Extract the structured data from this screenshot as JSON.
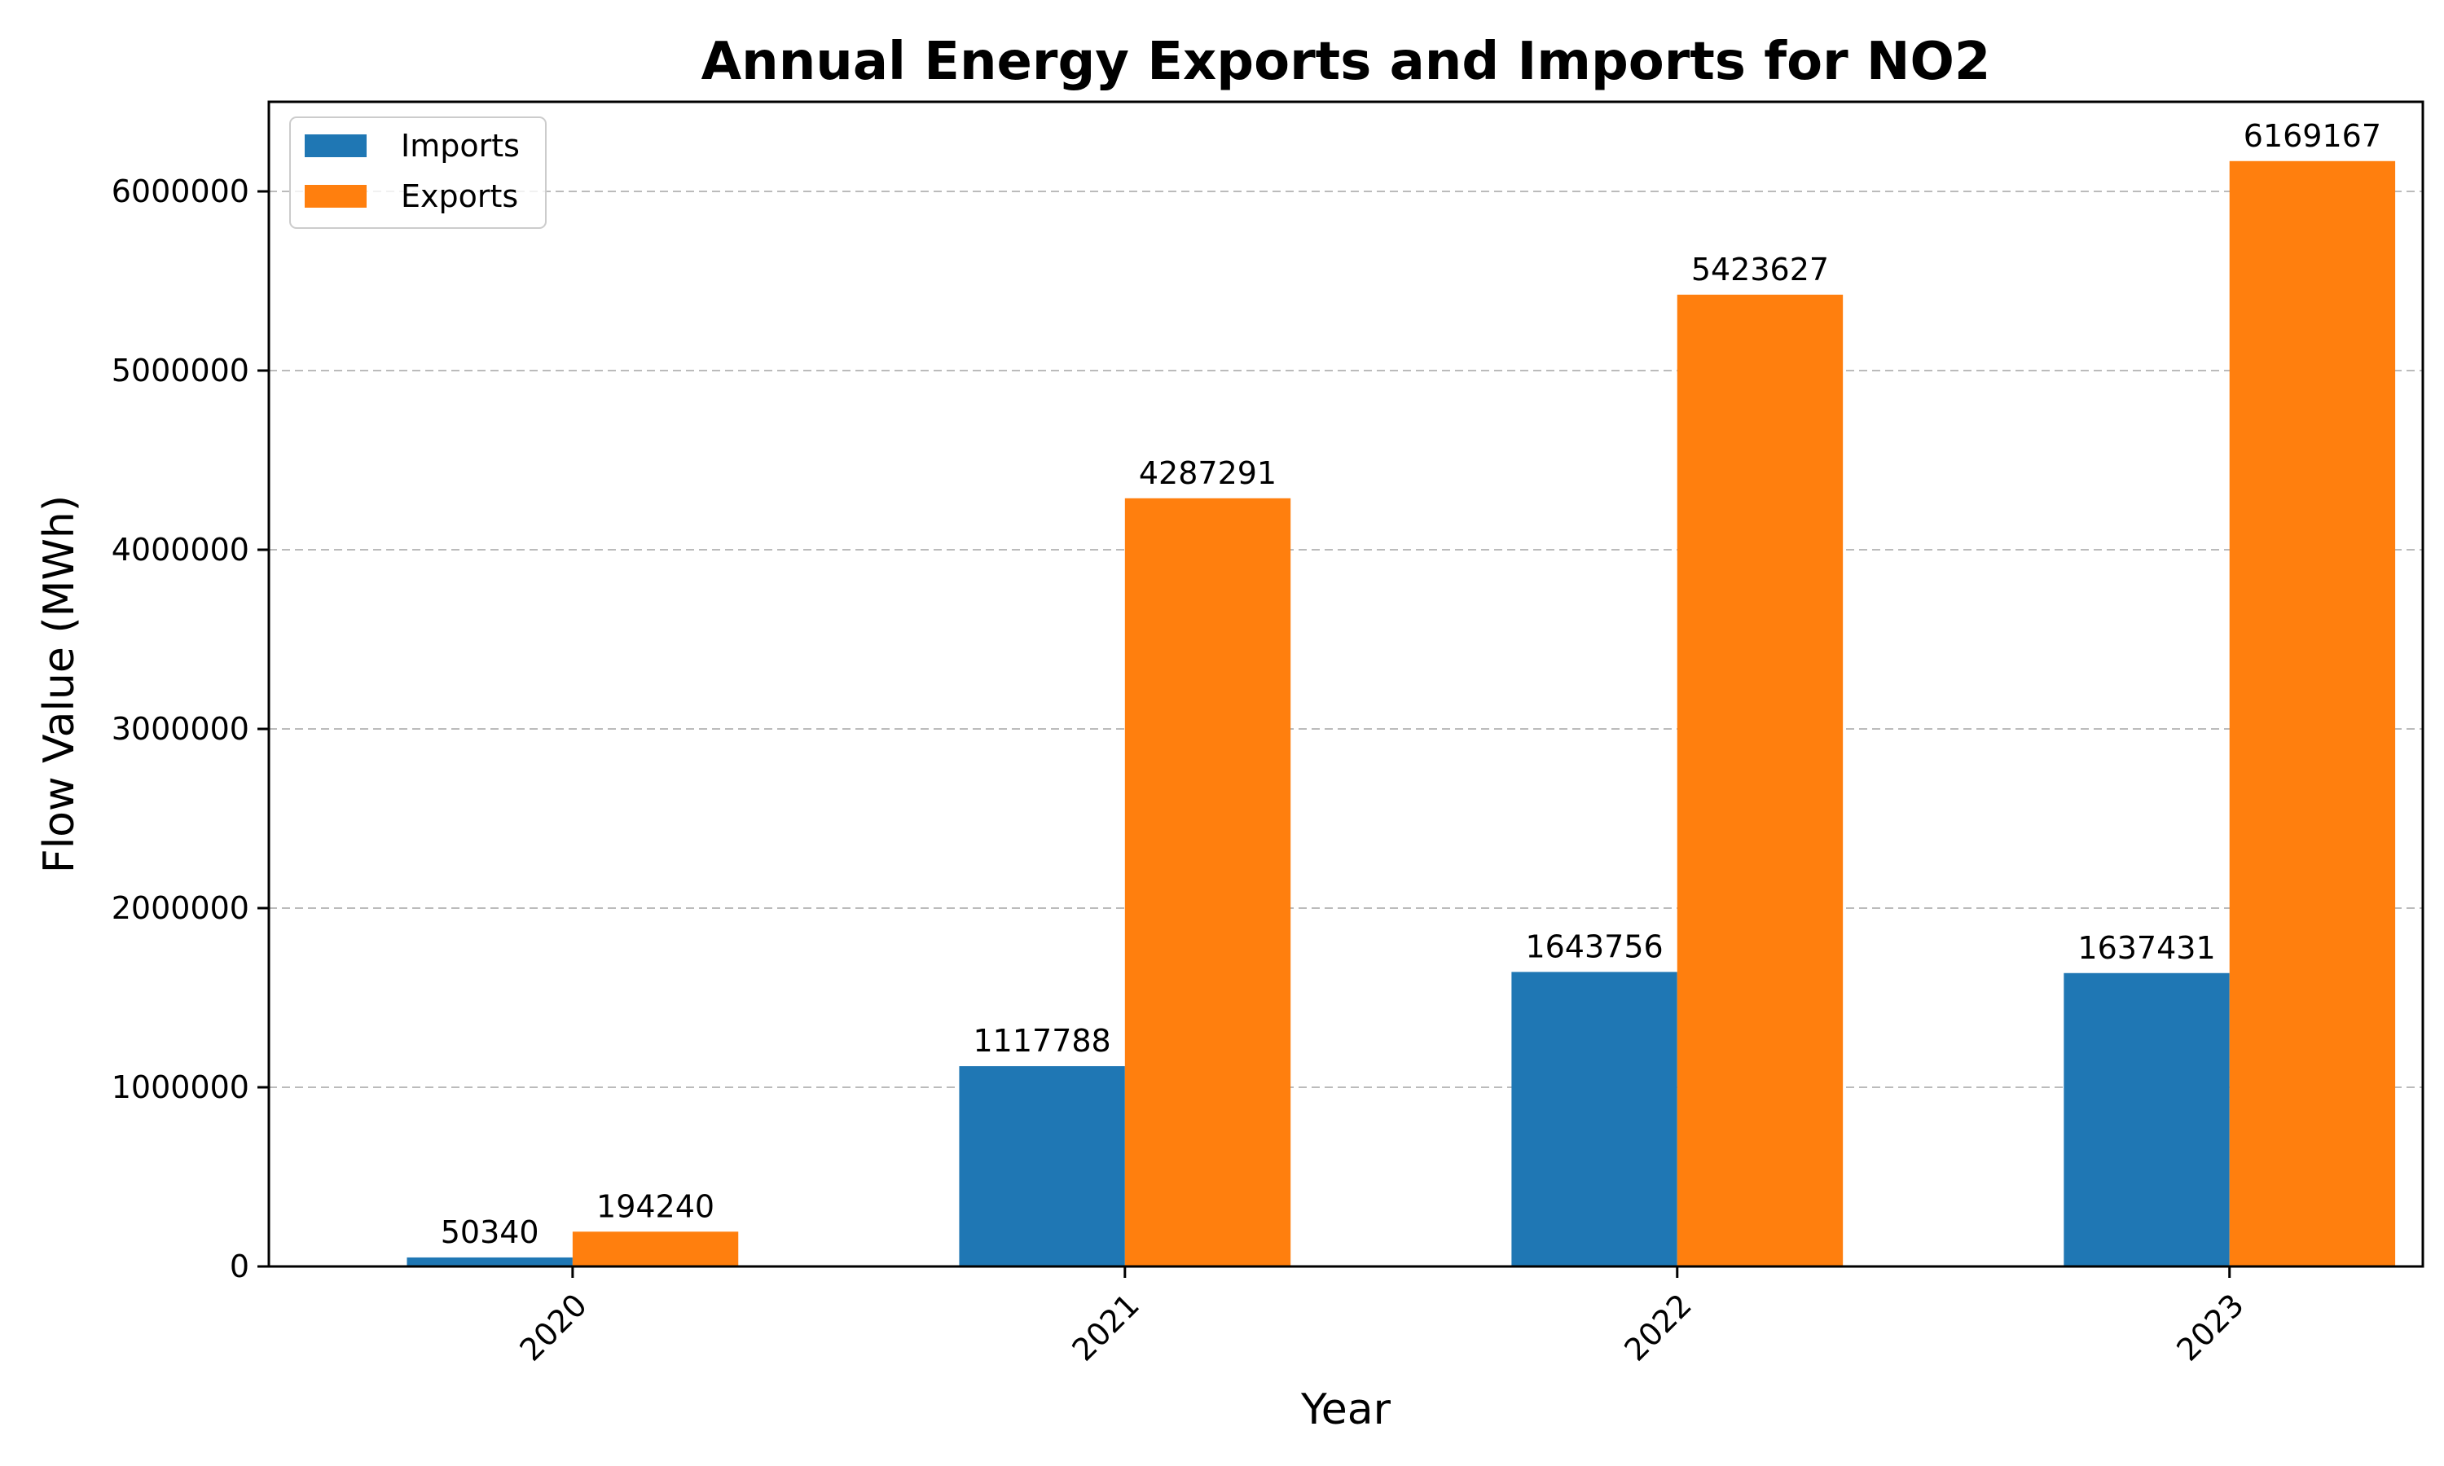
{
  "chart_data": {
    "type": "bar",
    "title": "Annual Energy Exports and Imports for NO2",
    "xlabel": "Year",
    "ylabel": "Flow Value (MWh)",
    "categories": [
      "2020",
      "2021",
      "2022",
      "2023"
    ],
    "series": [
      {
        "name": "Imports",
        "color": "#1f77b4",
        "values": [
          50340,
          1117788,
          1643756,
          1637431
        ]
      },
      {
        "name": "Exports",
        "color": "#ff7f0e",
        "values": [
          194240,
          4287291,
          5423627,
          6169167
        ]
      }
    ],
    "ylim": [
      0,
      6500000
    ],
    "yticks": [
      0,
      1000000,
      2000000,
      3000000,
      4000000,
      5000000,
      6000000
    ],
    "ytick_labels": [
      "0",
      "1000000",
      "2000000",
      "3000000",
      "4000000",
      "5000000",
      "6000000"
    ],
    "grid": "y-dashed",
    "legend_position": "top-left",
    "xtick_rotation": 45,
    "data_labels": true
  }
}
